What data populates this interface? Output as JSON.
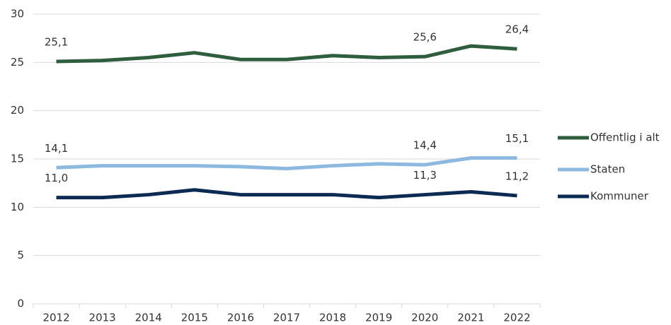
{
  "chart_data": {
    "type": "line",
    "categories": [
      "2012",
      "2013",
      "2014",
      "2015",
      "2016",
      "2017",
      "2018",
      "2019",
      "2020",
      "2021",
      "2022"
    ],
    "series": [
      {
        "name": "Offentlig i alt",
        "color": "#2e5e3e",
        "values": [
          25.1,
          25.2,
          25.5,
          26.0,
          25.3,
          25.3,
          25.7,
          25.5,
          25.6,
          26.7,
          26.4
        ],
        "value_labels": [
          "25,1",
          null,
          null,
          null,
          null,
          null,
          null,
          null,
          "25,6",
          null,
          "26,4"
        ]
      },
      {
        "name": "Staten",
        "color": "#8db8e0",
        "values": [
          14.1,
          14.3,
          14.3,
          14.3,
          14.2,
          14.0,
          14.3,
          14.5,
          14.4,
          15.1,
          15.1
        ],
        "value_labels": [
          "14,1",
          null,
          null,
          null,
          null,
          null,
          null,
          null,
          "14,4",
          null,
          "15,1"
        ]
      },
      {
        "name": "Kommuner",
        "color": "#0d2b52",
        "values": [
          11.0,
          11.0,
          11.3,
          11.8,
          11.3,
          11.3,
          11.3,
          11.0,
          11.3,
          11.6,
          11.2
        ],
        "value_labels": [
          "11,0",
          null,
          null,
          null,
          null,
          null,
          null,
          null,
          "11,3",
          null,
          "11,2"
        ]
      }
    ],
    "ylim": [
      0,
      30
    ],
    "yticks": [
      0,
      5,
      10,
      15,
      20,
      25,
      30
    ],
    "grid": true,
    "legend": "right"
  }
}
